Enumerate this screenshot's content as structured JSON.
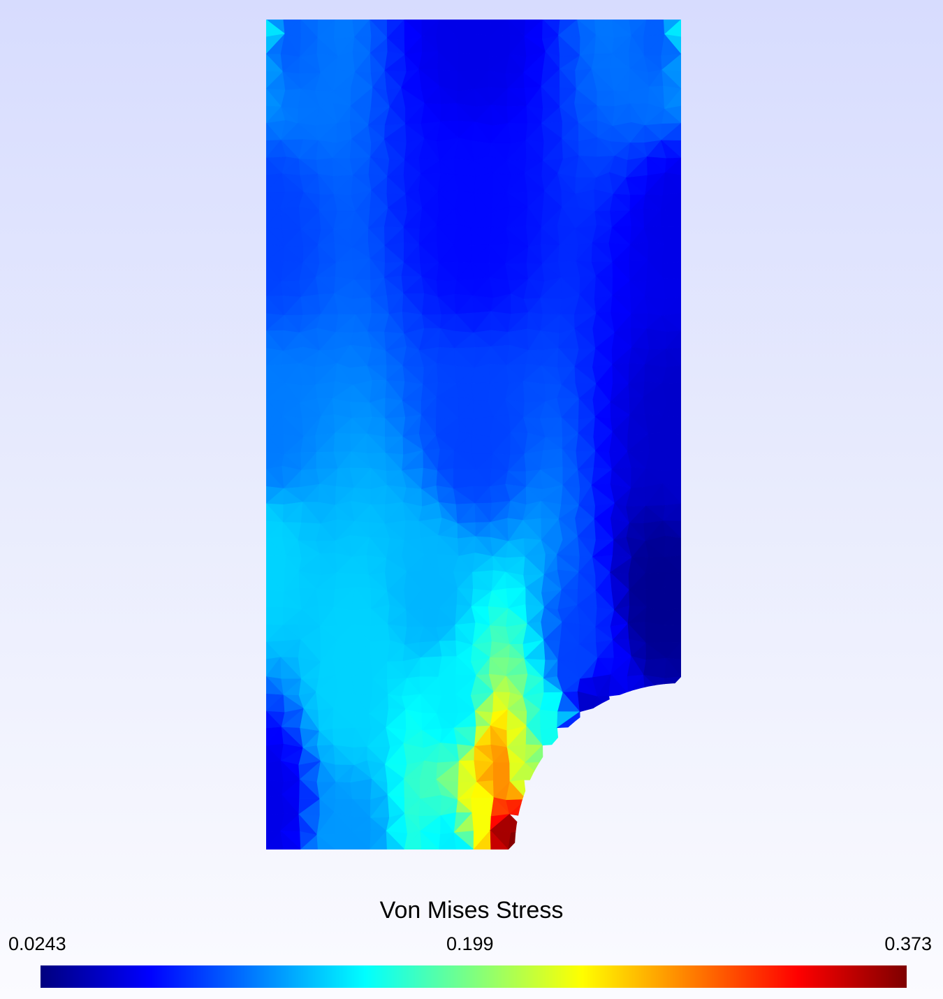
{
  "chart_data": {
    "type": "heatmap",
    "title": "Von Mises Stress",
    "colormap": "jet",
    "colorbar": {
      "min": 0.0243,
      "mid": 0.199,
      "max": 0.373,
      "min_label": "0.0243",
      "mid_label": "0.199",
      "max_label": "0.373",
      "placement": "bottom"
    },
    "field_samples": [
      {
        "x": 0.0,
        "y": 1.0,
        "value": 0.15
      },
      {
        "x": 0.05,
        "y": 0.98,
        "value": 0.1
      },
      {
        "x": 0.5,
        "y": 1.0,
        "value": 0.06
      },
      {
        "x": 0.95,
        "y": 0.98,
        "value": 0.1
      },
      {
        "x": 1.0,
        "y": 1.0,
        "value": 0.15
      },
      {
        "x": 0.0,
        "y": 0.75,
        "value": 0.09
      },
      {
        "x": 0.5,
        "y": 0.75,
        "value": 0.07
      },
      {
        "x": 1.0,
        "y": 0.75,
        "value": 0.06
      },
      {
        "x": 0.0,
        "y": 0.5,
        "value": 0.11
      },
      {
        "x": 0.5,
        "y": 0.5,
        "value": 0.09
      },
      {
        "x": 1.0,
        "y": 0.5,
        "value": 0.05
      },
      {
        "x": 0.0,
        "y": 0.35,
        "value": 0.14
      },
      {
        "x": 0.4,
        "y": 0.3,
        "value": 0.13
      },
      {
        "x": 0.95,
        "y": 0.3,
        "value": 0.03
      },
      {
        "x": 0.2,
        "y": 0.2,
        "value": 0.14
      },
      {
        "x": 0.45,
        "y": 0.18,
        "value": 0.15
      },
      {
        "x": 0.75,
        "y": 0.22,
        "value": 0.09
      },
      {
        "x": 0.78,
        "y": 0.17,
        "value": 0.05
      },
      {
        "x": 0.0,
        "y": 0.05,
        "value": 0.06
      },
      {
        "x": 0.2,
        "y": 0.0,
        "value": 0.12
      },
      {
        "x": 0.45,
        "y": 0.0,
        "value": 0.15
      },
      {
        "x": 0.52,
        "y": 0.04,
        "value": 0.24
      },
      {
        "x": 0.57,
        "y": 0.09,
        "value": 0.28
      },
      {
        "x": 0.58,
        "y": 0.02,
        "value": 0.36
      },
      {
        "x": 0.6,
        "y": 0.0,
        "value": 0.373
      },
      {
        "x": 0.62,
        "y": 0.1,
        "value": 0.22
      },
      {
        "x": 0.68,
        "y": 0.14,
        "value": 0.16
      }
    ]
  }
}
